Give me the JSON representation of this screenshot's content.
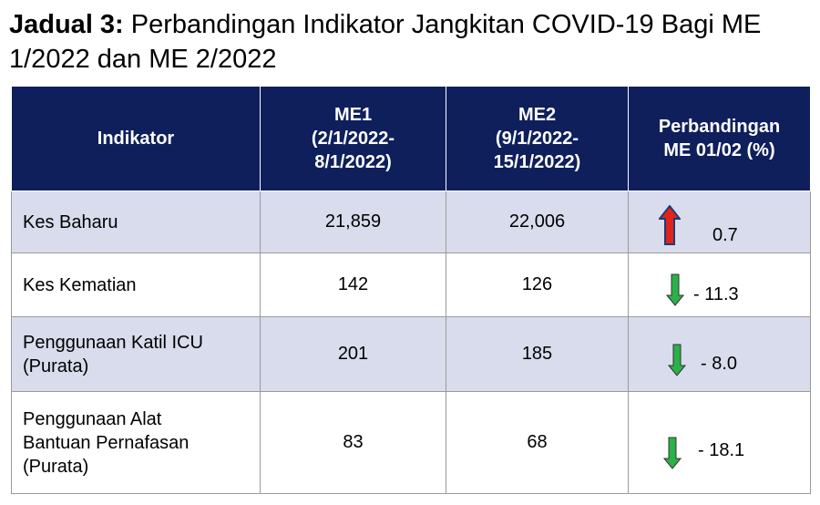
{
  "title": {
    "prefix": "Jadual 3:",
    "text": " Perbandingan Indikator Jangkitan COVID-19 Bagi ME 1/2022 dan ME 2/2022"
  },
  "table": {
    "headers": {
      "indicator": "Indikator",
      "me1_l1": "ME1",
      "me1_l2": "(2/1/2022-",
      "me1_l3": "8/1/2022)",
      "me2_l1": "ME2",
      "me2_l2": "(9/1/2022-",
      "me2_l3": "15/1/2022)",
      "cmp_l1": "Perbandingan",
      "cmp_l2": "ME 01/02 (%)"
    },
    "rows": [
      {
        "label_l1": "Kes Baharu",
        "label_l2": "",
        "label_l3": "",
        "me1": "21,859",
        "me2": "22,006",
        "change": "0.7",
        "direction": "up",
        "arrow_color": "#e2231a"
      },
      {
        "label_l1": "Kes Kematian",
        "label_l2": "",
        "label_l3": "",
        "me1": "142",
        "me2": "126",
        "change": "- 11.3",
        "direction": "down",
        "arrow_color": "#2bb14a"
      },
      {
        "label_l1": "Penggunaan Katil ICU",
        "label_l2": "(Purata)",
        "label_l3": "",
        "me1": "201",
        "me2": "185",
        "change": "- 8.0",
        "direction": "down",
        "arrow_color": "#2bb14a"
      },
      {
        "label_l1": "Penggunaan Alat",
        "label_l2": "Bantuan Pernafasan",
        "label_l3": "(Purata)",
        "me1": "83",
        "me2": "68",
        "change": "- 18.1",
        "direction": "down",
        "arrow_color": "#2bb14a"
      }
    ]
  }
}
